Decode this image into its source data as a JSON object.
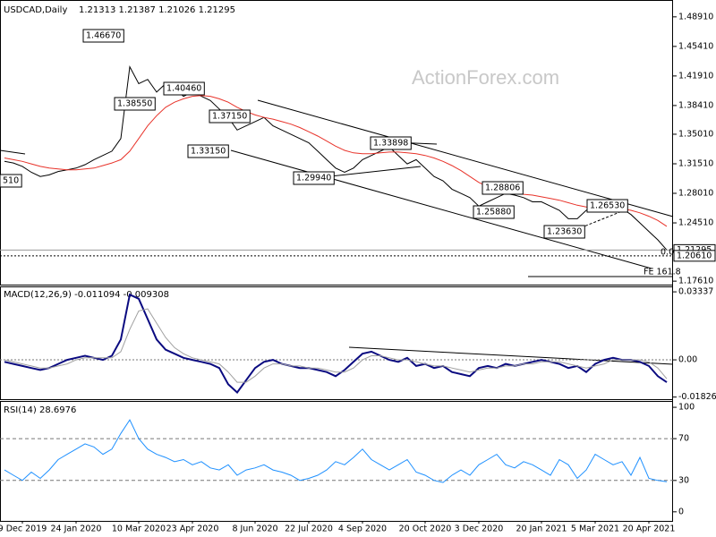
{
  "chart_data": [
    {
      "type": "line",
      "title": "USDCAD,Daily",
      "subtitle": "1.21313 1.21387 1.21026 1.21295",
      "watermark": "ActionForex.com",
      "categories": [
        null,
        null,
        "9 Dec 2019",
        null,
        null,
        null,
        null,
        null,
        "24 Jan 2020",
        null,
        null,
        null,
        null,
        null,
        null,
        "10 Mar 2020",
        null,
        null,
        null,
        null,
        null,
        "23 Apr 2020",
        null,
        null,
        null,
        null,
        null,
        null,
        "8 Jun 2020",
        null,
        null,
        null,
        null,
        null,
        "22 Jul 2020",
        null,
        null,
        null,
        null,
        null,
        "4 Sep 2020",
        null,
        null,
        null,
        null,
        null,
        null,
        "20 Oct 2020",
        null,
        null,
        null,
        null,
        null,
        "3 Dec 2020",
        null,
        null,
        null,
        null,
        null,
        null,
        "20 Jan 2021",
        null,
        null,
        null,
        null,
        null,
        "5 Mar 2021",
        null,
        null,
        null,
        null,
        null,
        "20 Apr 2021",
        null,
        null
      ],
      "series": [
        {
          "color": "#000000",
          "values": [
            1.318,
            1.316,
            1.312,
            1.305,
            1.3,
            1.302,
            1.306,
            1.308,
            1.31,
            1.314,
            1.32,
            1.325,
            1.33,
            1.345,
            1.43,
            1.41,
            1.415,
            1.4,
            1.41,
            1.405,
            1.395,
            1.4,
            1.395,
            1.39,
            1.38,
            1.37,
            1.355,
            1.36,
            1.365,
            1.37,
            1.36,
            1.355,
            1.35,
            1.345,
            1.34,
            1.33,
            1.32,
            1.31,
            1.305,
            1.31,
            1.32,
            1.325,
            1.33,
            1.335,
            1.325,
            1.315,
            1.32,
            1.31,
            1.3,
            1.295,
            1.285,
            1.28,
            1.275,
            1.265,
            1.27,
            1.275,
            1.28,
            1.278,
            1.275,
            1.27,
            1.27,
            1.265,
            1.26,
            1.25,
            1.25,
            1.26,
            1.265,
            1.262,
            1.27,
            1.262,
            1.255,
            1.245,
            1.235,
            1.225,
            1.213
          ]
        },
        {
          "color": "#e8332a",
          "values": [
            1.322,
            1.32,
            1.318,
            1.315,
            1.312,
            1.31,
            1.309,
            1.308,
            1.308,
            1.309,
            1.31,
            1.313,
            1.316,
            1.32,
            1.33,
            1.345,
            1.36,
            1.372,
            1.382,
            1.388,
            1.392,
            1.395,
            1.396,
            1.395,
            1.392,
            1.388,
            1.382,
            1.377,
            1.373,
            1.37,
            1.368,
            1.365,
            1.362,
            1.358,
            1.353,
            1.348,
            1.342,
            1.336,
            1.331,
            1.328,
            1.327,
            1.327,
            1.328,
            1.329,
            1.329,
            1.328,
            1.327,
            1.325,
            1.322,
            1.318,
            1.313,
            1.307,
            1.3,
            1.293,
            1.288,
            1.284,
            1.281,
            1.28,
            1.279,
            1.278,
            1.276,
            1.274,
            1.272,
            1.269,
            1.266,
            1.264,
            1.263,
            1.263,
            1.263,
            1.262,
            1.26,
            1.257,
            1.253,
            1.248,
            1.241
          ]
        }
      ],
      "ylim": [
        1.172,
        1.508
      ],
      "yticks": [
        {
          "value": 1.4891,
          "label": "1.48910"
        },
        {
          "value": 1.4541,
          "label": "1.45410"
        },
        {
          "value": 1.4191,
          "label": "1.41910"
        },
        {
          "value": 1.3841,
          "label": "1.38410"
        },
        {
          "value": 1.3501,
          "label": "1.35010"
        },
        {
          "value": 1.3151,
          "label": "1.31510"
        },
        {
          "value": 1.2801,
          "label": "1.28010"
        },
        {
          "value": 1.2451,
          "label": "1.24510"
        },
        {
          "value": 1.1761,
          "label": "1.17610"
        }
      ],
      "price_labels": [
        {
          "value": 1.21295,
          "label": "1.21295"
        },
        {
          "value": 1.2061,
          "label": "1.20610"
        }
      ],
      "annotations": [
        "510",
        "1.46670",
        "1.38550",
        "1.40460",
        "1.37150",
        "1.33150",
        "1.29940",
        "1.33898",
        "1.28806",
        "1.25880",
        "1.23630",
        "1.26530",
        "FE 161.8",
        "0.0"
      ]
    },
    {
      "type": "line",
      "title": "MACD(12,26,9) -0.011094 -0.009308",
      "series": [
        {
          "color": "#0a0a80",
          "values": [
            -0.001,
            -0.002,
            -0.003,
            -0.004,
            -0.005,
            -0.004,
            -0.002,
            0.0,
            0.001,
            0.002,
            0.001,
            0.0,
            0.002,
            0.01,
            0.032,
            0.03,
            0.02,
            0.01,
            0.005,
            0.003,
            0.001,
            0.0,
            -0.001,
            -0.002,
            -0.004,
            -0.012,
            -0.016,
            -0.01,
            -0.004,
            -0.001,
            0.0,
            -0.002,
            -0.003,
            -0.004,
            -0.004,
            -0.005,
            -0.006,
            -0.008,
            -0.005,
            -0.001,
            0.003,
            0.004,
            0.002,
            0.0,
            -0.001,
            0.001,
            -0.003,
            -0.002,
            -0.004,
            -0.003,
            -0.006,
            -0.007,
            -0.008,
            -0.004,
            -0.003,
            -0.004,
            -0.002,
            -0.003,
            -0.002,
            -0.001,
            0.0,
            -0.001,
            -0.002,
            -0.004,
            -0.003,
            -0.006,
            -0.002,
            0.0,
            0.001,
            0.0,
            0.0,
            -0.001,
            -0.003,
            -0.008,
            -0.011
          ]
        },
        {
          "color": "#a0a0a0",
          "values": [
            0.0,
            -0.001,
            -0.002,
            -0.003,
            -0.004,
            -0.004,
            -0.003,
            -0.002,
            0.0,
            0.001,
            0.001,
            0.001,
            0.001,
            0.004,
            0.015,
            0.024,
            0.025,
            0.018,
            0.011,
            0.006,
            0.003,
            0.001,
            0.0,
            -0.001,
            -0.002,
            -0.006,
            -0.011,
            -0.011,
            -0.008,
            -0.004,
            -0.002,
            -0.002,
            -0.003,
            -0.003,
            -0.004,
            -0.004,
            -0.005,
            -0.006,
            -0.006,
            -0.004,
            0.0,
            0.002,
            0.002,
            0.001,
            0.0,
            0.0,
            -0.001,
            -0.002,
            -0.003,
            -0.003,
            -0.004,
            -0.005,
            -0.006,
            -0.005,
            -0.004,
            -0.004,
            -0.003,
            -0.003,
            -0.002,
            -0.002,
            -0.001,
            -0.001,
            -0.001,
            -0.002,
            -0.003,
            -0.004,
            -0.003,
            -0.002,
            0.0,
            0.0,
            0.0,
            0.0,
            -0.001,
            -0.004,
            -0.0093
          ]
        }
      ],
      "ylim": [
        -0.0193,
        0.0356
      ],
      "yticks": [
        0.03337,
        {
          "value": 0,
          "label": "0.00"
        },
        -0.018262
      ]
    },
    {
      "type": "line",
      "title": "RSI(14) 28.6976",
      "series": [
        {
          "color": "#1e90ff",
          "values": [
            40,
            35,
            30,
            38,
            32,
            40,
            50,
            55,
            60,
            65,
            62,
            55,
            60,
            75,
            88,
            70,
            60,
            55,
            52,
            48,
            50,
            45,
            48,
            42,
            40,
            45,
            35,
            40,
            42,
            45,
            40,
            38,
            35,
            30,
            32,
            35,
            40,
            48,
            45,
            52,
            60,
            50,
            45,
            40,
            45,
            50,
            38,
            35,
            30,
            28,
            35,
            40,
            35,
            45,
            50,
            55,
            45,
            42,
            48,
            45,
            40,
            35,
            50,
            45,
            32,
            40,
            55,
            50,
            45,
            48,
            35,
            52,
            32,
            30,
            28.7
          ]
        }
      ],
      "ylim": [
        -8.7,
        105.2
      ],
      "yticks": [
        100,
        70,
        30,
        0
      ]
    }
  ]
}
